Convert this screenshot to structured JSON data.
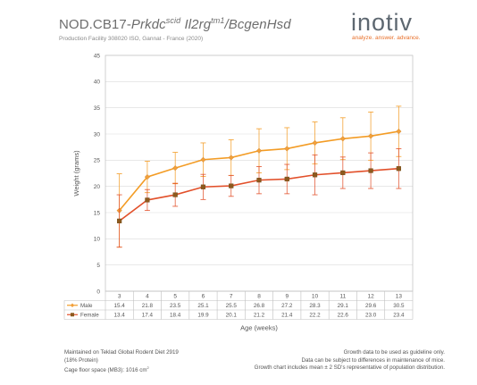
{
  "header": {
    "title_prefix": "NOD.CB17-",
    "title_prkdc": "Prkdc",
    "title_scid": "scid",
    "title_il2rg": "Il2rg",
    "title_tm1": "tm1",
    "title_suffix": "/BcgenHsd",
    "subtitle": "Production Facility 308020 ISO, Gannat - France (2020)"
  },
  "logo": {
    "word": "inotiv",
    "tagline": "analyze. answer. advance.",
    "accent_color": "#e8702a"
  },
  "chart_data": {
    "type": "line",
    "xlabel": "Age (weeks)",
    "ylabel": "Weight (grams)",
    "ylim": [
      0,
      45
    ],
    "yticks": [
      0,
      5,
      10,
      15,
      20,
      25,
      30,
      35,
      40,
      45
    ],
    "x": [
      3,
      4,
      5,
      6,
      7,
      8,
      9,
      10,
      11,
      12,
      13
    ],
    "grid": true,
    "series": [
      {
        "name": "Male",
        "color": "#f39c25",
        "marker": "diamond",
        "values": [
          15.4,
          21.8,
          23.5,
          25.1,
          25.5,
          26.8,
          27.2,
          28.3,
          29.1,
          29.6,
          30.5
        ],
        "sd": [
          3.5,
          1.5,
          1.5,
          1.6,
          1.7,
          2.1,
          2.0,
          2.0,
          2.0,
          2.3,
          2.4
        ]
      },
      {
        "name": "Female",
        "color": "#e2502a",
        "marker": "square",
        "values": [
          13.4,
          17.4,
          18.4,
          19.9,
          20.1,
          21.2,
          21.4,
          22.2,
          22.6,
          23.0,
          23.4
        ],
        "sd": [
          2.5,
          1.0,
          1.1,
          1.2,
          1.0,
          1.3,
          1.4,
          1.9,
          1.5,
          1.7,
          1.9
        ]
      }
    ],
    "table_cells": {
      "Male": [
        "15.4",
        "21.8",
        "23.5",
        "25.1",
        "25.5",
        "26.8",
        "27.2",
        "28.3",
        "29.1",
        "29.6",
        "30.5"
      ],
      "Female": [
        "13.4",
        "17.4",
        "18.4",
        "19.9",
        "20.1",
        "21.2",
        "21.4",
        "22.2",
        "22.6",
        "23.0",
        "23.4"
      ]
    }
  },
  "footer": {
    "left_line1": "Maintained on Teklad Global Rodent Diet 2919",
    "left_line2": "(18% Protein)",
    "left_line3": "Cage floor space (MB3): 1016 cm",
    "left_line3_sup": "2",
    "right_line1": "Growth data to be used as guideline only.",
    "right_line2": "Data can be subject to differences in maintenance of mice.",
    "right_line3": "Growth chart includes mean ± 2 SD's representative of population distribution."
  }
}
